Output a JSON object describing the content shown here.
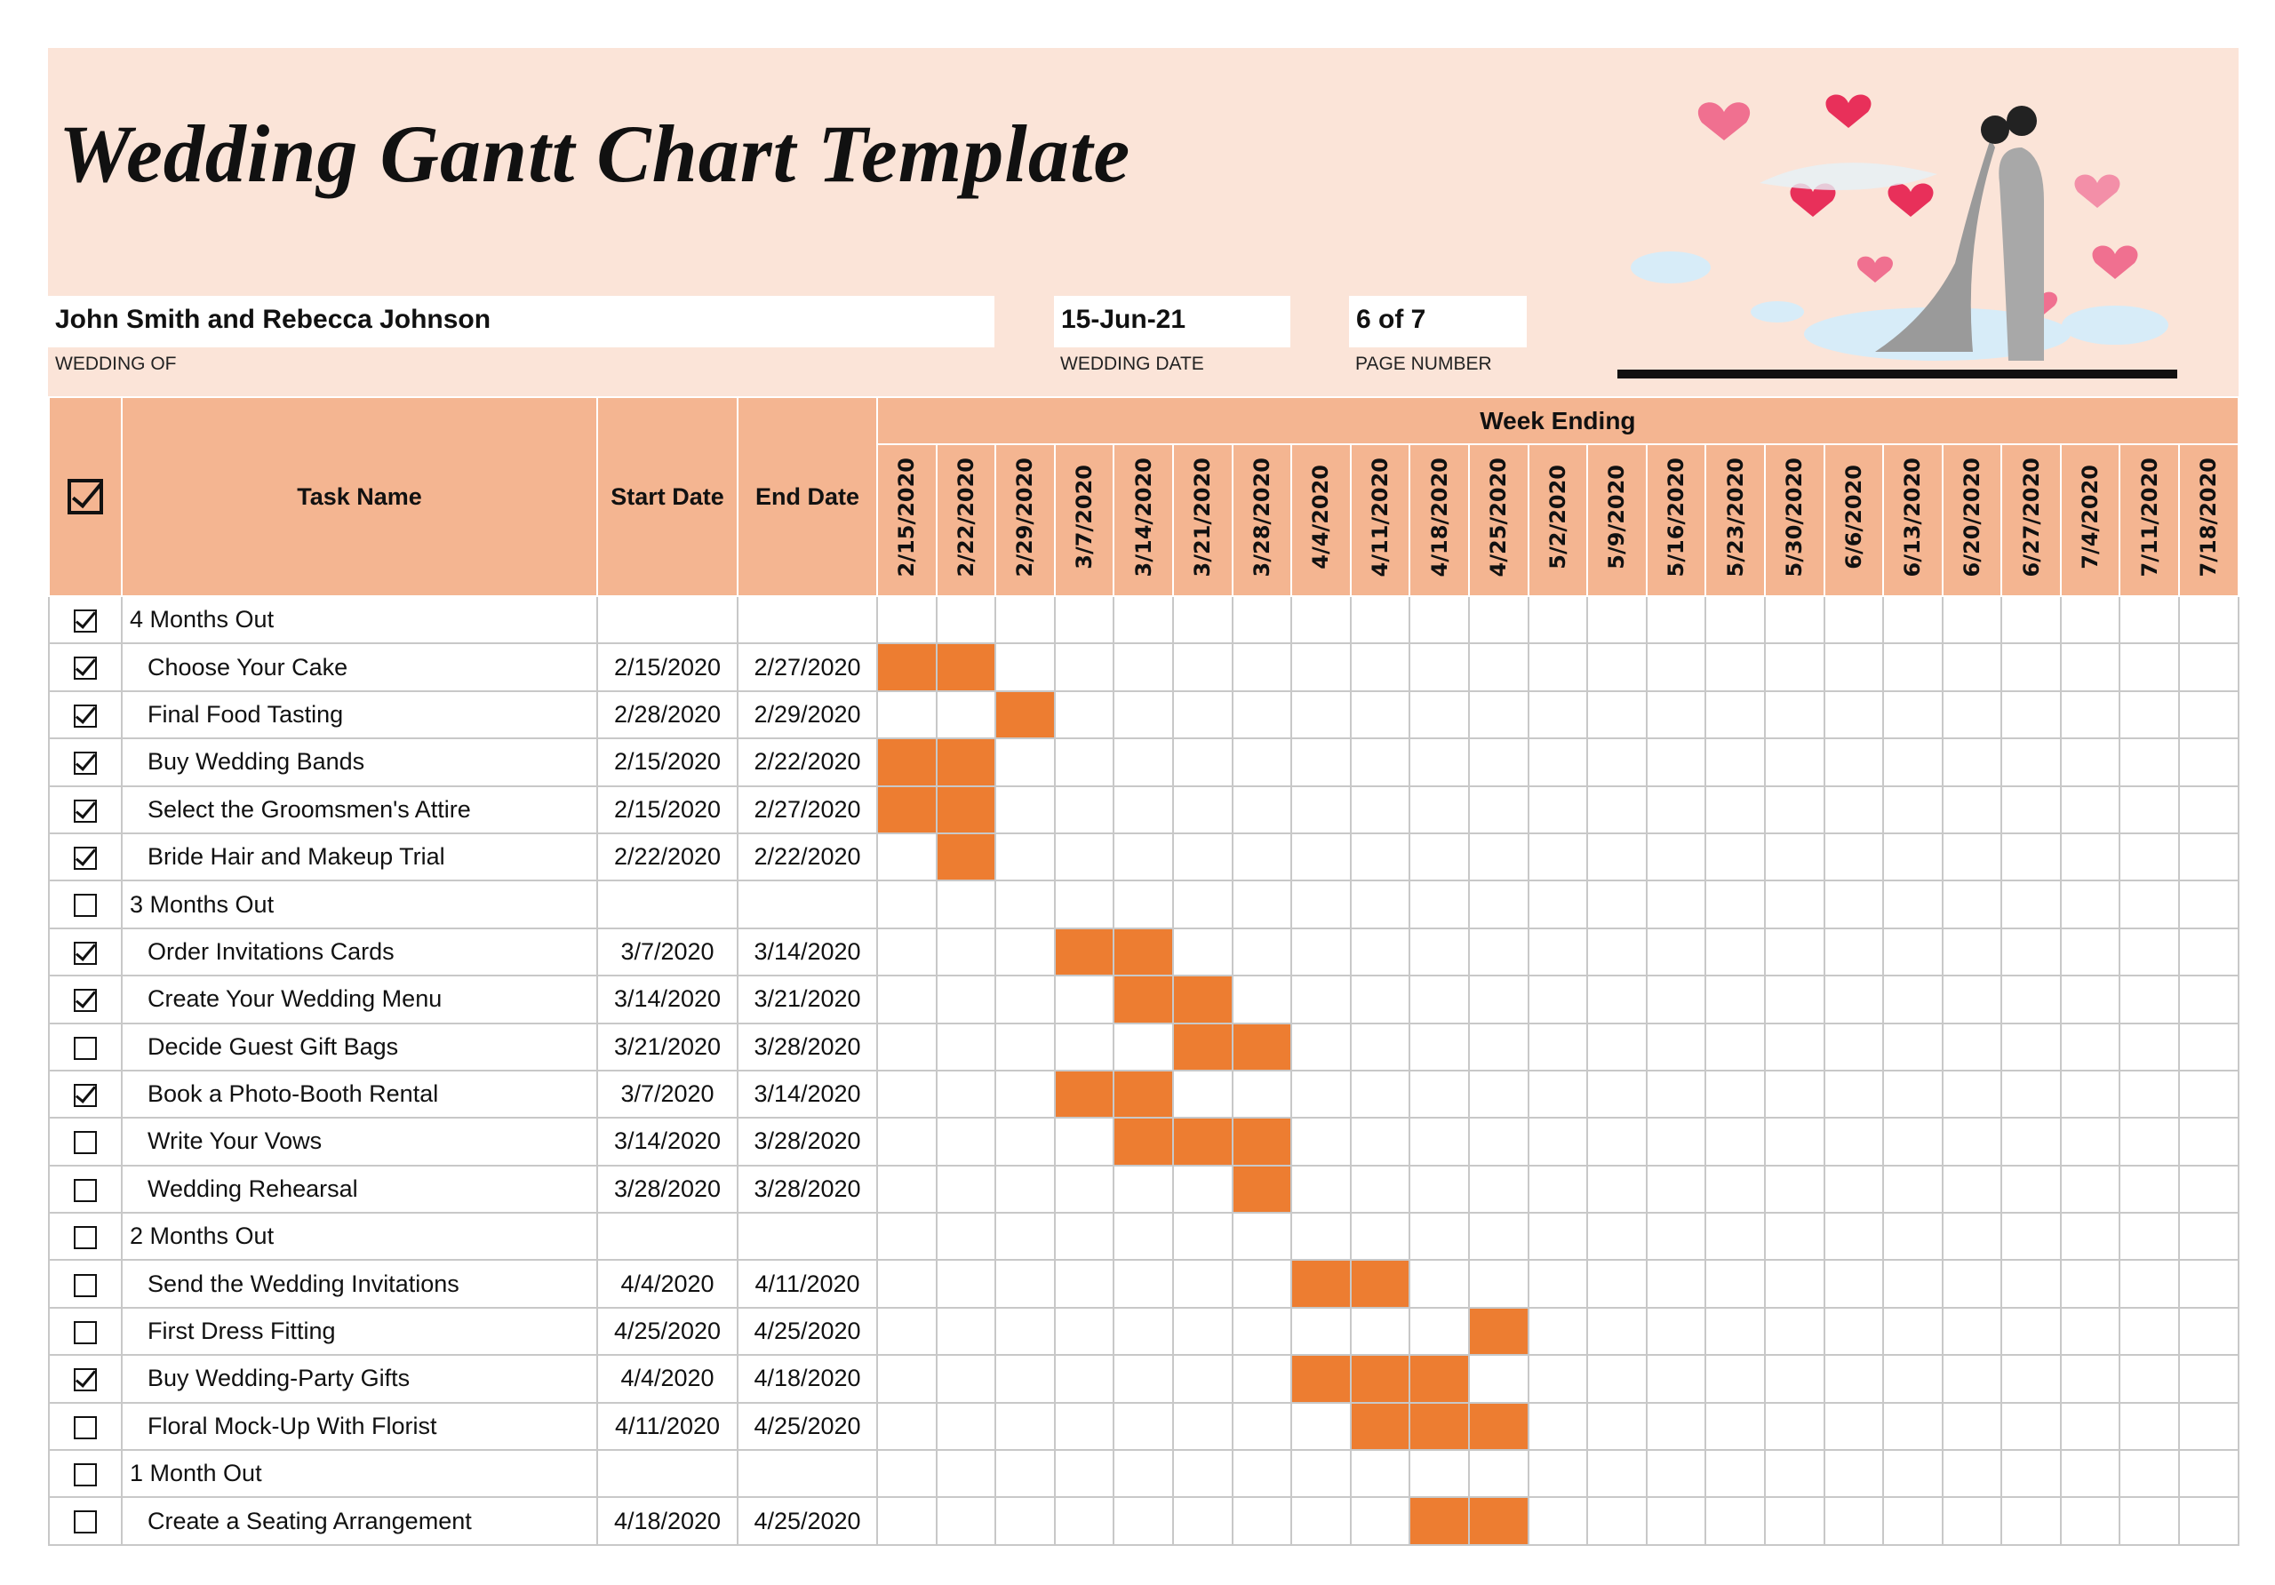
{
  "title": "Wedding Gantt Chart Template",
  "fields": {
    "wedding_of": "John Smith and Rebecca Johnson",
    "wedding_of_label": "WEDDING OF",
    "wedding_date": "15-Jun-21",
    "wedding_date_label": "WEDDING DATE",
    "page_number": "6 of 7",
    "page_number_label": "PAGE NUMBER"
  },
  "table": {
    "headers": {
      "task": "Task Name",
      "start": "Start Date",
      "end": "End Date",
      "weeks": "Week Ending"
    },
    "weeks": [
      "2/15/2020",
      "2/22/2020",
      "2/29/2020",
      "3/7/2020",
      "3/14/2020",
      "3/21/2020",
      "3/28/2020",
      "4/4/2020",
      "4/11/2020",
      "4/18/2020",
      "4/25/2020",
      "5/2/2020",
      "5/9/2020",
      "5/16/2020",
      "5/23/2020",
      "5/30/2020",
      "6/6/2020",
      "6/13/2020",
      "6/20/2020",
      "6/27/2020",
      "7/4/2020",
      "7/11/2020",
      "7/18/2020"
    ],
    "rows": [
      {
        "done": true,
        "group": true,
        "task": "4 Months Out",
        "start": "",
        "end": ""
      },
      {
        "done": true,
        "task": "Choose Your Cake",
        "start": "2/15/2020",
        "end": "2/27/2020"
      },
      {
        "done": true,
        "task": "Final Food Tasting",
        "start": "2/28/2020",
        "end": "2/29/2020"
      },
      {
        "done": true,
        "task": "Buy Wedding Bands",
        "start": "2/15/2020",
        "end": "2/22/2020"
      },
      {
        "done": true,
        "task": "Select the Groomsmen's Attire",
        "start": "2/15/2020",
        "end": "2/27/2020"
      },
      {
        "done": true,
        "task": "Bride Hair and Makeup Trial",
        "start": "2/22/2020",
        "end": "2/22/2020"
      },
      {
        "done": false,
        "group": true,
        "task": "3 Months Out",
        "start": "",
        "end": ""
      },
      {
        "done": true,
        "task": "Order Invitations Cards",
        "start": "3/7/2020",
        "end": "3/14/2020"
      },
      {
        "done": true,
        "task": "Create Your Wedding Menu",
        "start": "3/14/2020",
        "end": "3/21/2020"
      },
      {
        "done": false,
        "task": "Decide Guest Gift Bags",
        "start": "3/21/2020",
        "end": "3/28/2020"
      },
      {
        "done": true,
        "task": "Book a Photo-Booth Rental",
        "start": "3/7/2020",
        "end": "3/14/2020"
      },
      {
        "done": false,
        "task": "Write Your Vows",
        "start": "3/14/2020",
        "end": "3/28/2020"
      },
      {
        "done": false,
        "task": "Wedding Rehearsal",
        "start": "3/28/2020",
        "end": "3/28/2020"
      },
      {
        "done": false,
        "group": true,
        "task": "2 Months Out",
        "start": "",
        "end": ""
      },
      {
        "done": false,
        "task": "Send the Wedding Invitations",
        "start": "4/4/2020",
        "end": "4/11/2020"
      },
      {
        "done": false,
        "task": "First Dress Fitting",
        "start": "4/25/2020",
        "end": "4/25/2020"
      },
      {
        "done": true,
        "task": "Buy Wedding-Party Gifts",
        "start": "4/4/2020",
        "end": "4/18/2020"
      },
      {
        "done": false,
        "task": "Floral Mock-Up With Florist",
        "start": "4/11/2020",
        "end": "4/25/2020"
      },
      {
        "done": false,
        "group": true,
        "task": "1 Month Out",
        "start": "",
        "end": ""
      },
      {
        "done": false,
        "task": "Create a Seating Arrangement",
        "start": "4/18/2020",
        "end": "4/25/2020"
      }
    ]
  },
  "colors": {
    "header_bg": "#FBE4D8",
    "table_header": "#F4B591",
    "bar": "#ED7D31",
    "grid": "#C8C8C8"
  },
  "icons": {
    "header_check": "checked-box-icon",
    "illustration": "wedding-couple-hearts-illustration"
  }
}
